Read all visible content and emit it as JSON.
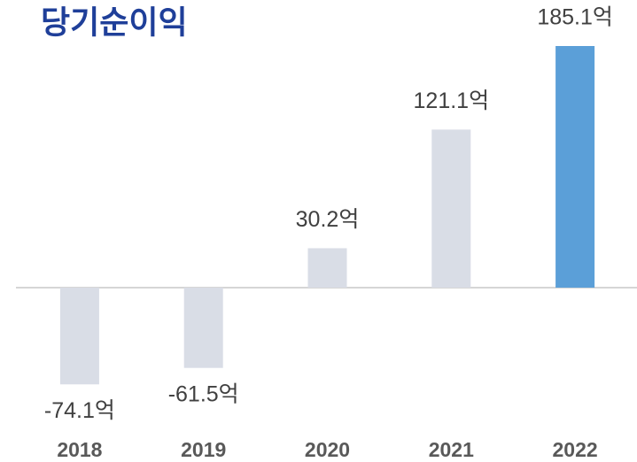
{
  "chart_data": {
    "type": "bar",
    "title": "당기순이익",
    "categories": [
      "2018",
      "2019",
      "2020",
      "2021",
      "2022"
    ],
    "values": [
      -74.1,
      -61.5,
      30.2,
      121.1,
      185.1
    ],
    "value_labels": [
      "-74.1억",
      "-61.5억",
      "30.2억",
      "121.1억",
      "185.1억"
    ],
    "colors": [
      "#d9dde6",
      "#d9dde6",
      "#d9dde6",
      "#d9dde6",
      "#5b9fd8"
    ]
  }
}
